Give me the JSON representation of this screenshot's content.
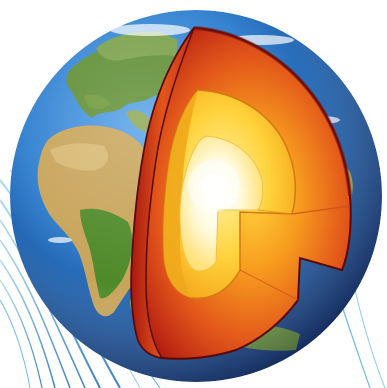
{
  "image": {
    "subject": "earth-interior-cutaway",
    "layers": [
      "crust",
      "mantle",
      "outer-core",
      "inner-core"
    ],
    "colors": {
      "background": "#ffffff",
      "ocean_dark": "#0b3f8c",
      "ocean_light": "#2f7fd0",
      "land_green": "#4f8a2a",
      "land_desert": "#c9a85a",
      "mantle_outer": "#c8281a",
      "mantle_inner": "#f07a18",
      "outer_core": "#ffc21a",
      "inner_core": "#fff6c8",
      "streaks": "#5ab0e6"
    }
  }
}
